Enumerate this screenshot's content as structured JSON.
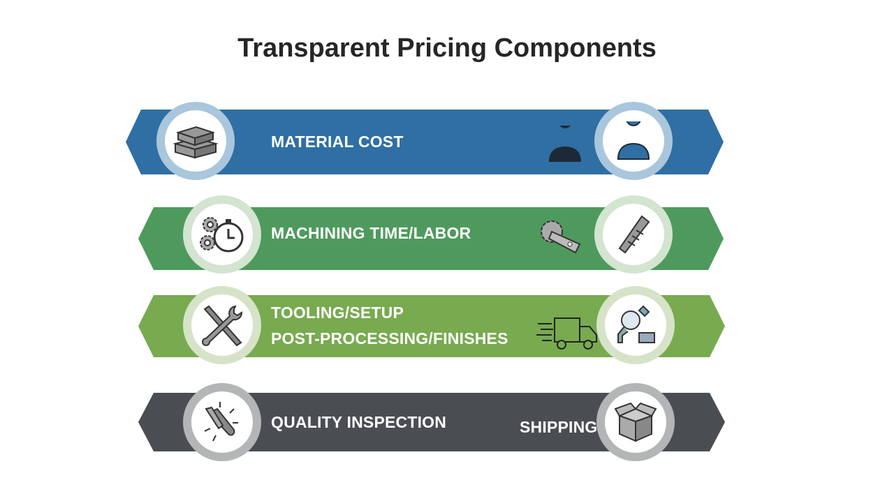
{
  "title": "Transparent Pricing Components",
  "colors": {
    "blue": "#2f6fa3",
    "green": "#4e9a5d",
    "light_green": "#78aa4f",
    "gray": "#4a4e53"
  },
  "rows": [
    {
      "labels": [
        "MATERIAL COST"
      ],
      "left_icon": "stacked-blocks-icon",
      "mid_icon": "person-silhouette-icon",
      "right_icon": "person-outline-icon"
    },
    {
      "labels": [
        "MACHINING TIME/LABOR"
      ],
      "left_icon": "gears-stopwatch-icon",
      "mid_icon": "saw-blade-icon",
      "right_icon": "drill-bit-icon"
    },
    {
      "labels": [
        "TOOLING/SETUP",
        "POST-PROCESSING/FINISHES"
      ],
      "left_icon": "wrench-screwdriver-icon",
      "mid_icon": "delivery-truck-icon",
      "right_icon": "magnifier-inspection-icon"
    },
    {
      "labels": [
        "QUALITY INSPECTION",
        "SHIPPING"
      ],
      "left_icon": "polishing-tool-icon",
      "right_icon": "open-box-icon"
    }
  ]
}
